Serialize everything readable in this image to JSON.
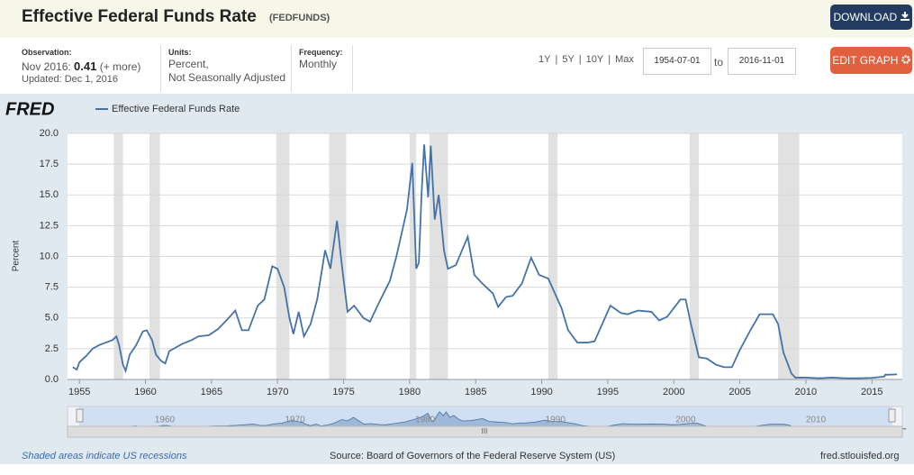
{
  "header": {
    "title": "Effective Federal Funds Rate",
    "series_id": "(FEDFUNDS)",
    "download": "DOWNLOAD",
    "edit": "EDIT GRAPH"
  },
  "info": {
    "observation_label": "Observation:",
    "observation_date": "Nov 2016:",
    "observation_value": 0.41,
    "more": "(+ more)",
    "updated": "Updated: Dec 1, 2016",
    "units_label": "Units:",
    "units_1": "Percent,",
    "units_2": "Not Seasonally Adjusted",
    "frequency_label": "Frequency:",
    "frequency": "Monthly"
  },
  "range": {
    "links": [
      "1Y",
      "5Y",
      "10Y",
      "Max"
    ],
    "start": "1954-07-01",
    "to": "to",
    "end": "2016-11-01"
  },
  "logo": "FRED",
  "chart_data": {
    "type": "line",
    "y_label": "Percent",
    "grid": true,
    "series": [
      {
        "name": "Effective Federal Funds Rate",
        "color": "#4572a7",
        "x": [
          1954.5,
          1954.8,
          1955,
          1955.5,
          1956,
          1956.5,
          1957,
          1957.5,
          1957.8,
          1958,
          1958.3,
          1958.5,
          1958.8,
          1959.3,
          1959.8,
          1960.1,
          1960.5,
          1960.8,
          1961.2,
          1961.5,
          1961.8,
          1962.3,
          1962.8,
          1963.5,
          1964,
          1964.8,
          1965.5,
          1966.3,
          1966.8,
          1967.3,
          1967.8,
          1968.5,
          1969,
          1969.6,
          1970,
          1970.5,
          1970.9,
          1971.2,
          1971.6,
          1972,
          1972.5,
          1973,
          1973.6,
          1974,
          1974.5,
          1974.9,
          1975.3,
          1975.8,
          1976.5,
          1977,
          1977.8,
          1978.5,
          1979,
          1979.8,
          1980.2,
          1980.5,
          1980.7,
          1980.9,
          1981.1,
          1981.4,
          1981.6,
          1981.9,
          1982.2,
          1982.6,
          1982.9,
          1983.5,
          1984.4,
          1984.9,
          1985.5,
          1986.3,
          1986.7,
          1987.3,
          1987.8,
          1988.5,
          1989.2,
          1989.8,
          1990.5,
          1991,
          1991.5,
          1992,
          1992.7,
          1993.5,
          1994,
          1994.5,
          1995.2,
          1996,
          1996.5,
          1997.3,
          1998.3,
          1998.9,
          1999.5,
          2000.5,
          2000.9,
          2001.3,
          2001.9,
          2002.5,
          2003.2,
          2003.8,
          2004.4,
          2005,
          2005.8,
          2006.5,
          2007.5,
          2007.9,
          2008.3,
          2008.9,
          2009.2,
          2010,
          2011,
          2012,
          2013,
          2014,
          2015,
          2015.95,
          2016,
          2016.9
        ],
        "values": [
          1.0,
          0.8,
          1.4,
          1.9,
          2.5,
          2.8,
          3.0,
          3.2,
          3.5,
          2.8,
          1.2,
          0.7,
          2.0,
          2.8,
          3.9,
          4.0,
          3.2,
          2.0,
          1.5,
          1.3,
          2.3,
          2.6,
          2.9,
          3.2,
          3.5,
          3.6,
          4.1,
          5.0,
          5.6,
          4.0,
          4.0,
          6.0,
          6.5,
          9.2,
          9.0,
          7.5,
          5.0,
          3.7,
          5.5,
          3.5,
          4.5,
          6.5,
          10.5,
          9.0,
          12.9,
          9.0,
          5.5,
          6.0,
          5.0,
          4.7,
          6.5,
          8.0,
          10.0,
          13.8,
          17.6,
          9.0,
          9.5,
          15.0,
          19.1,
          14.8,
          19.0,
          13.0,
          15.0,
          10.5,
          9.0,
          9.3,
          11.6,
          8.5,
          7.8,
          7.0,
          5.9,
          6.7,
          6.8,
          7.8,
          9.9,
          8.5,
          8.2,
          7.0,
          5.8,
          4.0,
          3.0,
          3.0,
          3.1,
          4.3,
          6.0,
          5.4,
          5.3,
          5.6,
          5.5,
          4.8,
          5.1,
          6.5,
          6.5,
          4.5,
          1.8,
          1.7,
          1.2,
          1.0,
          1.0,
          2.4,
          4.0,
          5.3,
          5.3,
          4.5,
          2.2,
          0.5,
          0.15,
          0.15,
          0.1,
          0.15,
          0.1,
          0.1,
          0.13,
          0.24,
          0.38,
          0.41
        ]
      }
    ],
    "recessions": [
      {
        "start": 1957.6,
        "end": 1958.3
      },
      {
        "start": 1960.3,
        "end": 1961.1
      },
      {
        "start": 1969.9,
        "end": 1970.9
      },
      {
        "start": 1973.9,
        "end": 1975.2
      },
      {
        "start": 1980.0,
        "end": 1980.5
      },
      {
        "start": 1981.5,
        "end": 1982.9
      },
      {
        "start": 1990.5,
        "end": 1991.2
      },
      {
        "start": 2001.2,
        "end": 2001.9
      },
      {
        "start": 2007.9,
        "end": 2009.5
      }
    ],
    "xlim": [
      1954.1,
      2017.3
    ],
    "xticks": [
      1955,
      1960,
      1965,
      1970,
      1975,
      1980,
      1985,
      1990,
      1995,
      2000,
      2005,
      2010,
      2015
    ],
    "ylim": [
      0,
      20
    ],
    "yticks": [
      {
        "value": 0,
        "label": "0.0"
      },
      {
        "value": 2.5,
        "label": "2.5"
      },
      {
        "value": 5,
        "label": "5.0"
      },
      {
        "value": 7.5,
        "label": "7.5"
      },
      {
        "value": 10,
        "label": "10.0"
      },
      {
        "value": 12.5,
        "label": "12.5"
      },
      {
        "value": 15,
        "label": "15.0"
      },
      {
        "value": 17.5,
        "label": "17.5"
      },
      {
        "value": 20,
        "label": "20.0"
      }
    ],
    "navigator_labels": [
      1960,
      1970,
      1980,
      1990,
      2000,
      2010
    ],
    "navigator_handle": "III"
  },
  "footer": {
    "note": "Shaded areas indicate US recessions",
    "source": "Source: Board of Governors of the Federal Reserve System (US)",
    "site": "fred.stlouisfed.org"
  }
}
